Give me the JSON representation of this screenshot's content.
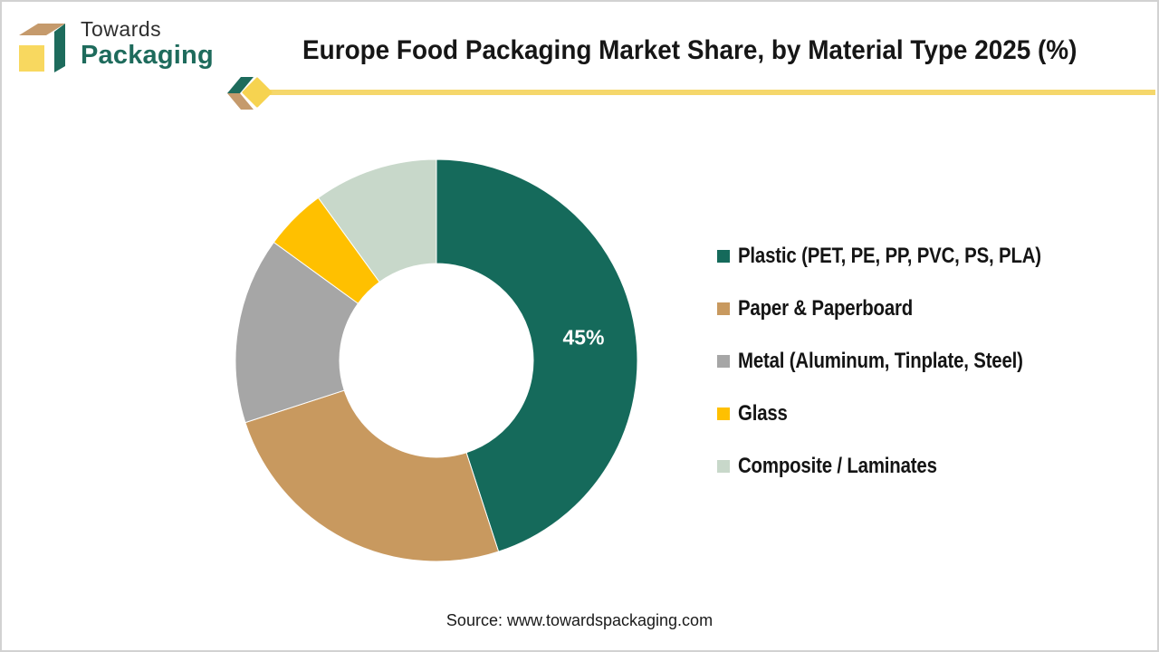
{
  "page": {
    "background": "#FFFFFF",
    "border_color": "#D2D2D2"
  },
  "branding": {
    "logo_text_top": "Towards",
    "logo_text_bottom": "Packaging",
    "logo_colors": {
      "top_face": "#C59A6C",
      "front_face": "#F8D85F",
      "side_face": "#1D6B5C",
      "text_bottom": "#1E6B5C"
    }
  },
  "header": {
    "title": "Europe Food Packaging Market Share, by Material Type 2025 (%)"
  },
  "divider": {
    "line_color": "#F5D76B",
    "diamond_color": "#F6D350",
    "chevron_top_color": "#1D6B5C",
    "chevron_bottom_color": "#C59A6C"
  },
  "chart_data": {
    "type": "pie",
    "subtype": "donut",
    "title": "Europe Food Packaging Market Share, by Material Type 2025 (%)",
    "categories": [
      "Plastic (PET, PE, PP, PVC, PS, PLA)",
      "Paper & Paperboard",
      "Metal (Aluminum, Tinplate, Steel)",
      "Glass",
      "Composite / Laminates"
    ],
    "values": [
      45,
      25,
      15,
      5,
      10
    ],
    "unit": "%",
    "colors": [
      "#156A5B",
      "#C8995F",
      "#A6A6A6",
      "#FFC000",
      "#C8D8CA"
    ],
    "data_labels": [
      "45%",
      "",
      "",
      "",
      ""
    ],
    "label_color": "#FFFFFF",
    "start_angle_deg": 0,
    "direction": "clockwise",
    "inner_radius_ratio": 0.48,
    "legend_position": "right",
    "grid": false
  },
  "footer": {
    "source": "Source: www.towardspackaging.com"
  }
}
